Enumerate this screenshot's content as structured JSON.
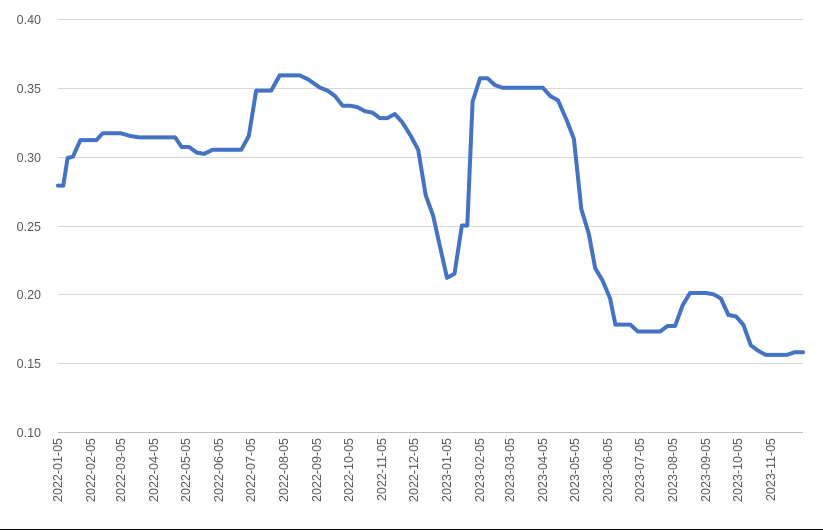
{
  "chart_data": {
    "type": "line",
    "title": "",
    "xlabel": "",
    "ylabel": "",
    "ylim": [
      0.1,
      0.4
    ],
    "y_ticks": [
      0.1,
      0.15,
      0.2,
      0.25,
      0.3,
      0.35,
      0.4
    ],
    "y_tick_labels": [
      "0.10",
      "0.15",
      "0.20",
      "0.25",
      "0.30",
      "0.35",
      "0.40"
    ],
    "x_tick_labels": [
      "2022-01-05",
      "2022-02-05",
      "2022-03-05",
      "2022-04-05",
      "2022-05-05",
      "2022-06-05",
      "2022-07-05",
      "2022-08-05",
      "2022-09-05",
      "2022-10-05",
      "2022-11-05",
      "2022-12-05",
      "2023-01-05",
      "2023-02-05",
      "2023-03-05",
      "2023-04-05",
      "2023-05-05",
      "2023-06-05",
      "2023-07-05",
      "2023-08-05",
      "2023-09-05",
      "2023-10-05",
      "2023-11-05"
    ],
    "x_range": [
      "2022-01-05",
      "2023-12-05"
    ],
    "grid": "horizontal",
    "legend": "none",
    "series": [
      {
        "color": "#4472c4",
        "points": [
          [
            "2022-01-05",
            0.279
          ],
          [
            "2022-01-10",
            0.279
          ],
          [
            "2022-01-14",
            0.299
          ],
          [
            "2022-01-19",
            0.3
          ],
          [
            "2022-01-26",
            0.312
          ],
          [
            "2022-02-10",
            0.312
          ],
          [
            "2022-02-16",
            0.317
          ],
          [
            "2022-03-05",
            0.317
          ],
          [
            "2022-03-14",
            0.315
          ],
          [
            "2022-03-22",
            0.314
          ],
          [
            "2022-04-25",
            0.314
          ],
          [
            "2022-05-01",
            0.307
          ],
          [
            "2022-05-08",
            0.307
          ],
          [
            "2022-05-15",
            0.303
          ],
          [
            "2022-05-22",
            0.302
          ],
          [
            "2022-05-30",
            0.305
          ],
          [
            "2022-06-26",
            0.305
          ],
          [
            "2022-07-03",
            0.315
          ],
          [
            "2022-07-10",
            0.348
          ],
          [
            "2022-07-24",
            0.348
          ],
          [
            "2022-08-01",
            0.359
          ],
          [
            "2022-08-20",
            0.359
          ],
          [
            "2022-08-28",
            0.356
          ],
          [
            "2022-09-08",
            0.35
          ],
          [
            "2022-09-15",
            0.348
          ],
          [
            "2022-09-22",
            0.344
          ],
          [
            "2022-09-29",
            0.337
          ],
          [
            "2022-10-06",
            0.337
          ],
          [
            "2022-10-13",
            0.336
          ],
          [
            "2022-10-20",
            0.333
          ],
          [
            "2022-10-27",
            0.332
          ],
          [
            "2022-11-03",
            0.328
          ],
          [
            "2022-11-10",
            0.328
          ],
          [
            "2022-11-17",
            0.331
          ],
          [
            "2022-11-24",
            0.325
          ],
          [
            "2022-12-02",
            0.315
          ],
          [
            "2022-12-09",
            0.305
          ],
          [
            "2022-12-16",
            0.272
          ],
          [
            "2022-12-23",
            0.257
          ],
          [
            "2022-12-29",
            0.236
          ],
          [
            "2023-01-05",
            0.212
          ],
          [
            "2023-01-12",
            0.215
          ],
          [
            "2023-01-19",
            0.25
          ],
          [
            "2023-01-24",
            0.25
          ],
          [
            "2023-01-29",
            0.34
          ],
          [
            "2023-02-05",
            0.357
          ],
          [
            "2023-02-12",
            0.357
          ],
          [
            "2023-02-19",
            0.352
          ],
          [
            "2023-02-26",
            0.35
          ],
          [
            "2023-04-05",
            0.35
          ],
          [
            "2023-04-12",
            0.344
          ],
          [
            "2023-04-19",
            0.341
          ],
          [
            "2023-04-27",
            0.327
          ],
          [
            "2023-05-04",
            0.313
          ],
          [
            "2023-05-11",
            0.262
          ],
          [
            "2023-05-18",
            0.244
          ],
          [
            "2023-05-24",
            0.219
          ],
          [
            "2023-05-31",
            0.21
          ],
          [
            "2023-06-07",
            0.197
          ],
          [
            "2023-06-12",
            0.178
          ],
          [
            "2023-06-26",
            0.178
          ],
          [
            "2023-07-03",
            0.173
          ],
          [
            "2023-07-24",
            0.173
          ],
          [
            "2023-07-31",
            0.177
          ],
          [
            "2023-08-07",
            0.177
          ],
          [
            "2023-08-14",
            0.192
          ],
          [
            "2023-08-21",
            0.201
          ],
          [
            "2023-09-05",
            0.201
          ],
          [
            "2023-09-12",
            0.2
          ],
          [
            "2023-09-19",
            0.197
          ],
          [
            "2023-09-26",
            0.185
          ],
          [
            "2023-10-03",
            0.184
          ],
          [
            "2023-10-10",
            0.178
          ],
          [
            "2023-10-17",
            0.163
          ],
          [
            "2023-10-24",
            0.159
          ],
          [
            "2023-10-31",
            0.156
          ],
          [
            "2023-11-20",
            0.156
          ],
          [
            "2023-11-27",
            0.158
          ],
          [
            "2023-12-05",
            0.158
          ]
        ]
      }
    ]
  }
}
